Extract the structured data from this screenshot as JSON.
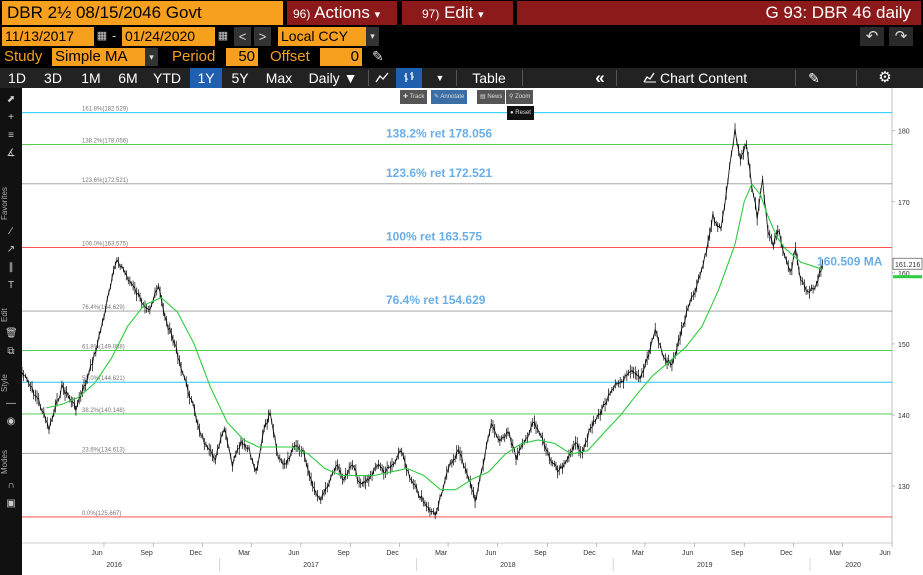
{
  "header": {
    "security": "DBR 2½ 08/15/2046 Govt",
    "actions": {
      "num": "96)",
      "label": "Actions",
      "caret": "▾"
    },
    "edit": {
      "num": "97)",
      "label": "Edit",
      "caret": "▾"
    },
    "title": "G 93: DBR 46 daily"
  },
  "range": {
    "start": "11/13/2017",
    "end": "01/24/2020",
    "sep": "-",
    "prev": "<",
    "next": ">",
    "currency": "Local CCY",
    "currency_caret": "▾",
    "undo": "↶",
    "redo": "↷"
  },
  "study": {
    "label": "Study",
    "value": "Simple MA",
    "period_label": "Period",
    "period": "50",
    "offset_label": "Offset",
    "offset": "0",
    "caret": "▾"
  },
  "toolbar": {
    "periods": [
      "1D",
      "3D",
      "1M",
      "6M",
      "YTD",
      "1Y",
      "5Y",
      "Max"
    ],
    "selected_period": "1Y",
    "frequency": "Daily ▼",
    "table": "Table",
    "collapse": "«",
    "chart_content": "Chart Content"
  },
  "chart_tools": {
    "track": "Track",
    "annotate": "Annotate",
    "news": "News",
    "zoom": "Zoom",
    "reset": "Reset"
  },
  "left_labels": {
    "favorites": "Favorites",
    "edit": "Edit",
    "style": "Style",
    "modes": "Modes"
  },
  "colors": {
    "orange": "#f7a01e",
    "maroon": "#8c1a1a",
    "selected_blue": "#1f5fb0",
    "price": "#000000",
    "ma": "#2ecc40"
  },
  "chart_data": {
    "type": "line",
    "title": "G 93: DBR 46 daily",
    "ylim": [
      122,
      186
    ],
    "x_start": "2016-01",
    "x_end": "2020-06",
    "yticks": [
      130,
      140,
      150,
      160,
      170,
      180
    ],
    "xticks": [
      "Jun",
      "Sep",
      "Dec",
      "Mar",
      "Jun",
      "Sep",
      "Dec",
      "Mar",
      "Jun",
      "Sep",
      "Dec",
      "Mar",
      "Jun",
      "Sep",
      "Dec",
      "Mar",
      "Jun"
    ],
    "years": [
      "2016",
      "2017",
      "2018",
      "2019",
      "2020"
    ],
    "last_price": "161.216",
    "ma_label": "160.509 MA",
    "fib_levels": [
      {
        "label": "161.8%(182.529)",
        "value": 182.529,
        "color": "#00bfff"
      },
      {
        "label": "138.2%(178.056)",
        "value": 178.056,
        "color": "#3cc83c"
      },
      {
        "label": "123.6%(172.521)",
        "value": 172.521,
        "color": "#9a9a9a"
      },
      {
        "label": "100.0%(163.575)",
        "value": 163.575,
        "color": "#ff3b3b"
      },
      {
        "label": "76.4%(154.629)",
        "value": 154.629,
        "color": "#9a9a9a"
      },
      {
        "label": "61.8%(149.088)",
        "value": 149.088,
        "color": "#3cc83c"
      },
      {
        "label": "50.0%(144.621)",
        "value": 144.621,
        "color": "#00bfff"
      },
      {
        "label": "38.2%(140.148)",
        "value": 140.148,
        "color": "#3cc83c"
      },
      {
        "label": "23.6%(134.613)",
        "value": 134.613,
        "color": "#9a9a9a"
      },
      {
        "label": "0.0%(125.667)",
        "value": 125.667,
        "color": "#ff3b3b"
      }
    ],
    "callouts": [
      {
        "label": "138.2% ret 178.056",
        "value": 178.056
      },
      {
        "label": "123.6% ret 172.521",
        "value": 172.521
      },
      {
        "label": "100% ret 163.575",
        "value": 163.575
      },
      {
        "label": "76.4% ret 154.629",
        "value": 154.629
      }
    ],
    "price_points": [
      [
        "2016-01-01",
        146
      ],
      [
        "2016-02-01",
        142
      ],
      [
        "2016-02-20",
        138
      ],
      [
        "2016-03-15",
        144
      ],
      [
        "2016-04-10",
        141
      ],
      [
        "2016-05-01",
        145
      ],
      [
        "2016-05-20",
        150
      ],
      [
        "2016-06-10",
        157
      ],
      [
        "2016-06-25",
        162
      ],
      [
        "2016-07-10",
        160
      ],
      [
        "2016-07-25",
        158
      ],
      [
        "2016-08-10",
        156
      ],
      [
        "2016-08-25",
        155
      ],
      [
        "2016-09-10",
        158
      ],
      [
        "2016-09-25",
        153
      ],
      [
        "2016-10-10",
        150
      ],
      [
        "2016-10-25",
        146
      ],
      [
        "2016-11-10",
        142
      ],
      [
        "2016-11-25",
        138
      ],
      [
        "2016-12-10",
        135
      ],
      [
        "2016-12-25",
        134
      ],
      [
        "2017-01-10",
        138
      ],
      [
        "2017-01-25",
        133
      ],
      [
        "2017-02-10",
        136
      ],
      [
        "2017-02-25",
        135
      ],
      [
        "2017-03-10",
        132
      ],
      [
        "2017-03-25",
        138
      ],
      [
        "2017-04-05",
        140
      ],
      [
        "2017-04-20",
        134
      ],
      [
        "2017-05-05",
        133
      ],
      [
        "2017-05-20",
        136
      ],
      [
        "2017-06-05",
        135
      ],
      [
        "2017-06-20",
        131
      ],
      [
        "2017-07-05",
        128
      ],
      [
        "2017-07-20",
        130
      ],
      [
        "2017-08-05",
        133
      ],
      [
        "2017-08-20",
        131
      ],
      [
        "2017-09-05",
        133
      ],
      [
        "2017-09-20",
        130
      ],
      [
        "2017-10-05",
        131
      ],
      [
        "2017-10-20",
        133
      ],
      [
        "2017-11-05",
        132
      ],
      [
        "2017-11-20",
        133
      ],
      [
        "2017-12-05",
        135
      ],
      [
        "2017-12-20",
        131
      ],
      [
        "2018-01-05",
        129
      ],
      [
        "2018-01-20",
        127
      ],
      [
        "2018-02-05",
        126
      ],
      [
        "2018-02-20",
        130
      ],
      [
        "2018-03-05",
        133
      ],
      [
        "2018-03-20",
        135
      ],
      [
        "2018-04-05",
        132
      ],
      [
        "2018-04-20",
        128
      ],
      [
        "2018-05-05",
        133
      ],
      [
        "2018-05-20",
        139
      ],
      [
        "2018-06-05",
        136
      ],
      [
        "2018-06-20",
        138
      ],
      [
        "2018-07-05",
        134
      ],
      [
        "2018-07-20",
        136
      ],
      [
        "2018-08-05",
        139
      ],
      [
        "2018-08-20",
        137
      ],
      [
        "2018-09-05",
        134
      ],
      [
        "2018-09-20",
        132
      ],
      [
        "2018-10-05",
        133
      ],
      [
        "2018-10-20",
        136
      ],
      [
        "2018-11-05",
        135
      ],
      [
        "2018-11-20",
        138
      ],
      [
        "2018-12-05",
        140
      ],
      [
        "2018-12-20",
        142
      ],
      [
        "2019-01-05",
        144
      ],
      [
        "2019-01-20",
        145
      ],
      [
        "2019-02-05",
        146
      ],
      [
        "2019-02-20",
        145
      ],
      [
        "2019-03-05",
        148
      ],
      [
        "2019-03-20",
        152
      ],
      [
        "2019-04-05",
        148
      ],
      [
        "2019-04-20",
        147
      ],
      [
        "2019-05-05",
        151
      ],
      [
        "2019-05-20",
        155
      ],
      [
        "2019-06-05",
        158
      ],
      [
        "2019-06-20",
        162
      ],
      [
        "2019-07-05",
        168
      ],
      [
        "2019-07-20",
        166
      ],
      [
        "2019-08-05",
        175
      ],
      [
        "2019-08-15",
        180
      ],
      [
        "2019-08-25",
        176
      ],
      [
        "2019-09-05",
        178
      ],
      [
        "2019-09-15",
        172
      ],
      [
        "2019-09-25",
        168
      ],
      [
        "2019-10-05",
        173
      ],
      [
        "2019-10-15",
        166
      ],
      [
        "2019-10-25",
        164
      ],
      [
        "2019-11-05",
        166
      ],
      [
        "2019-11-15",
        162
      ],
      [
        "2019-11-25",
        160
      ],
      [
        "2019-12-05",
        163
      ],
      [
        "2019-12-15",
        159
      ],
      [
        "2019-12-28",
        157
      ],
      [
        "2020-01-10",
        158
      ],
      [
        "2020-01-24",
        161.2
      ]
    ],
    "ma_points": [
      [
        "2016-02-15",
        141
      ],
      [
        "2016-03-15",
        141.5
      ],
      [
        "2016-04-15",
        142.5
      ],
      [
        "2016-05-15",
        144.5
      ],
      [
        "2016-06-15",
        148
      ],
      [
        "2016-07-15",
        152.5
      ],
      [
        "2016-08-15",
        155.5
      ],
      [
        "2016-09-15",
        156.5
      ],
      [
        "2016-10-15",
        154.5
      ],
      [
        "2016-11-15",
        150
      ],
      [
        "2016-12-15",
        144
      ],
      [
        "2017-01-15",
        139
      ],
      [
        "2017-02-15",
        136.5
      ],
      [
        "2017-03-15",
        135.5
      ],
      [
        "2017-04-15",
        135.5
      ],
      [
        "2017-05-15",
        135.5
      ],
      [
        "2017-06-15",
        134.5
      ],
      [
        "2017-07-15",
        132.5
      ],
      [
        "2017-08-15",
        131.5
      ],
      [
        "2017-09-15",
        131.5
      ],
      [
        "2017-10-15",
        131.5
      ],
      [
        "2017-11-15",
        132
      ],
      [
        "2017-12-15",
        132.5
      ],
      [
        "2018-01-15",
        131.5
      ],
      [
        "2018-02-15",
        129.5
      ],
      [
        "2018-03-15",
        129.5
      ],
      [
        "2018-04-15",
        131
      ],
      [
        "2018-05-15",
        132
      ],
      [
        "2018-06-15",
        134.5
      ],
      [
        "2018-07-15",
        136
      ],
      [
        "2018-08-15",
        136.5
      ],
      [
        "2018-09-15",
        136
      ],
      [
        "2018-10-15",
        134.5
      ],
      [
        "2018-11-15",
        135
      ],
      [
        "2018-12-15",
        137.5
      ],
      [
        "2019-01-15",
        140
      ],
      [
        "2019-02-15",
        143
      ],
      [
        "2019-03-15",
        145.5
      ],
      [
        "2019-04-15",
        147.5
      ],
      [
        "2019-05-15",
        149.5
      ],
      [
        "2019-06-15",
        152.5
      ],
      [
        "2019-07-15",
        157.5
      ],
      [
        "2019-08-15",
        164
      ],
      [
        "2019-09-01",
        170
      ],
      [
        "2019-09-15",
        172.5
      ],
      [
        "2019-10-01",
        171
      ],
      [
        "2019-10-15",
        168
      ],
      [
        "2019-11-01",
        165
      ],
      [
        "2019-11-15",
        163.5
      ],
      [
        "2019-12-15",
        161.5
      ],
      [
        "2020-01-24",
        160.5
      ]
    ]
  }
}
